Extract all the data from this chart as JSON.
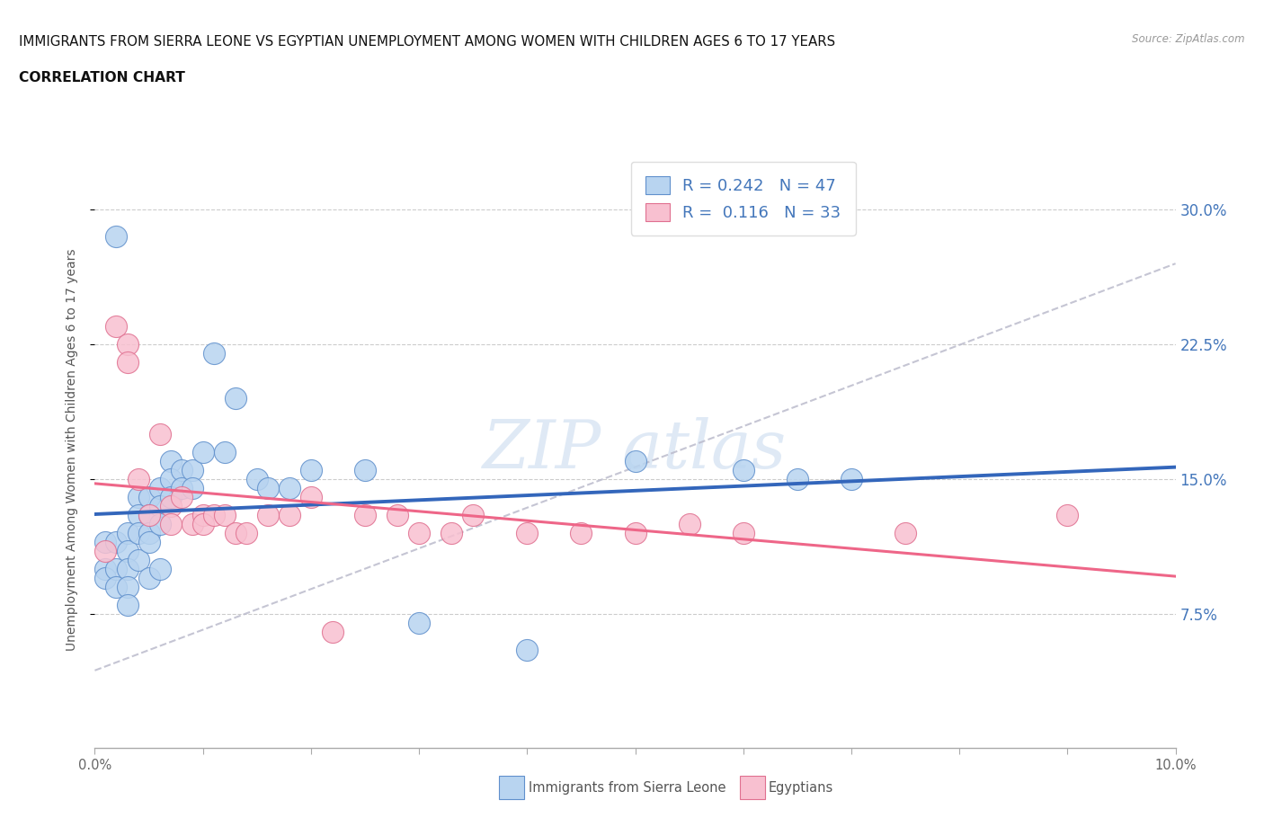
{
  "title_line1": "IMMIGRANTS FROM SIERRA LEONE VS EGYPTIAN UNEMPLOYMENT AMONG WOMEN WITH CHILDREN AGES 6 TO 17 YEARS",
  "title_line2": "CORRELATION CHART",
  "source_text": "Source: ZipAtlas.com",
  "ylabel": "Unemployment Among Women with Children Ages 6 to 17 years",
  "xlim": [
    0.0,
    0.1
  ],
  "ylim": [
    0.0,
    0.333
  ],
  "yticks": [
    0.075,
    0.15,
    0.225,
    0.3
  ],
  "ytick_labels": [
    "7.5%",
    "15.0%",
    "22.5%",
    "30.0%"
  ],
  "xtick_vals": [
    0.0,
    0.01,
    0.02,
    0.03,
    0.04,
    0.05,
    0.06,
    0.07,
    0.08,
    0.09,
    0.1
  ],
  "xtick_labels": [
    "0.0%",
    "",
    "",
    "",
    "",
    "",
    "",
    "",
    "",
    "",
    "10.0%"
  ],
  "legend_entry1": "Immigrants from Sierra Leone",
  "legend_entry2": "Egyptians",
  "r1": 0.242,
  "n1": 47,
  "r2": 0.116,
  "n2": 33,
  "blue_fill": "#B8D4F0",
  "blue_edge": "#6090CC",
  "pink_fill": "#F8C0D0",
  "pink_edge": "#E07090",
  "blue_line": "#3366BB",
  "pink_line": "#EE6688",
  "gray_dash": "#BBBBCC",
  "label_color": "#4477BB",
  "title_color": "#111111",
  "source_color": "#999999",
  "sierra_leone_x": [
    0.001,
    0.001,
    0.001,
    0.002,
    0.002,
    0.002,
    0.002,
    0.003,
    0.003,
    0.003,
    0.003,
    0.003,
    0.004,
    0.004,
    0.004,
    0.004,
    0.005,
    0.005,
    0.005,
    0.005,
    0.005,
    0.006,
    0.006,
    0.006,
    0.006,
    0.007,
    0.007,
    0.007,
    0.008,
    0.008,
    0.009,
    0.009,
    0.01,
    0.011,
    0.012,
    0.013,
    0.015,
    0.016,
    0.018,
    0.02,
    0.025,
    0.03,
    0.04,
    0.05,
    0.06,
    0.065,
    0.07
  ],
  "sierra_leone_y": [
    0.1,
    0.115,
    0.095,
    0.115,
    0.1,
    0.09,
    0.285,
    0.12,
    0.11,
    0.1,
    0.09,
    0.08,
    0.14,
    0.13,
    0.12,
    0.105,
    0.14,
    0.13,
    0.12,
    0.115,
    0.095,
    0.145,
    0.135,
    0.125,
    0.1,
    0.16,
    0.15,
    0.14,
    0.155,
    0.145,
    0.155,
    0.145,
    0.165,
    0.22,
    0.165,
    0.195,
    0.15,
    0.145,
    0.145,
    0.155,
    0.155,
    0.07,
    0.055,
    0.16,
    0.155,
    0.15,
    0.15
  ],
  "egypt_x": [
    0.001,
    0.002,
    0.003,
    0.003,
    0.004,
    0.005,
    0.006,
    0.007,
    0.007,
    0.008,
    0.009,
    0.01,
    0.01,
    0.011,
    0.012,
    0.013,
    0.014,
    0.016,
    0.018,
    0.02,
    0.022,
    0.025,
    0.028,
    0.03,
    0.033,
    0.035,
    0.04,
    0.045,
    0.05,
    0.055,
    0.06,
    0.075,
    0.09
  ],
  "egypt_y": [
    0.11,
    0.235,
    0.225,
    0.215,
    0.15,
    0.13,
    0.175,
    0.135,
    0.125,
    0.14,
    0.125,
    0.13,
    0.125,
    0.13,
    0.13,
    0.12,
    0.12,
    0.13,
    0.13,
    0.14,
    0.065,
    0.13,
    0.13,
    0.12,
    0.12,
    0.13,
    0.12,
    0.12,
    0.12,
    0.125,
    0.12,
    0.12,
    0.13
  ]
}
